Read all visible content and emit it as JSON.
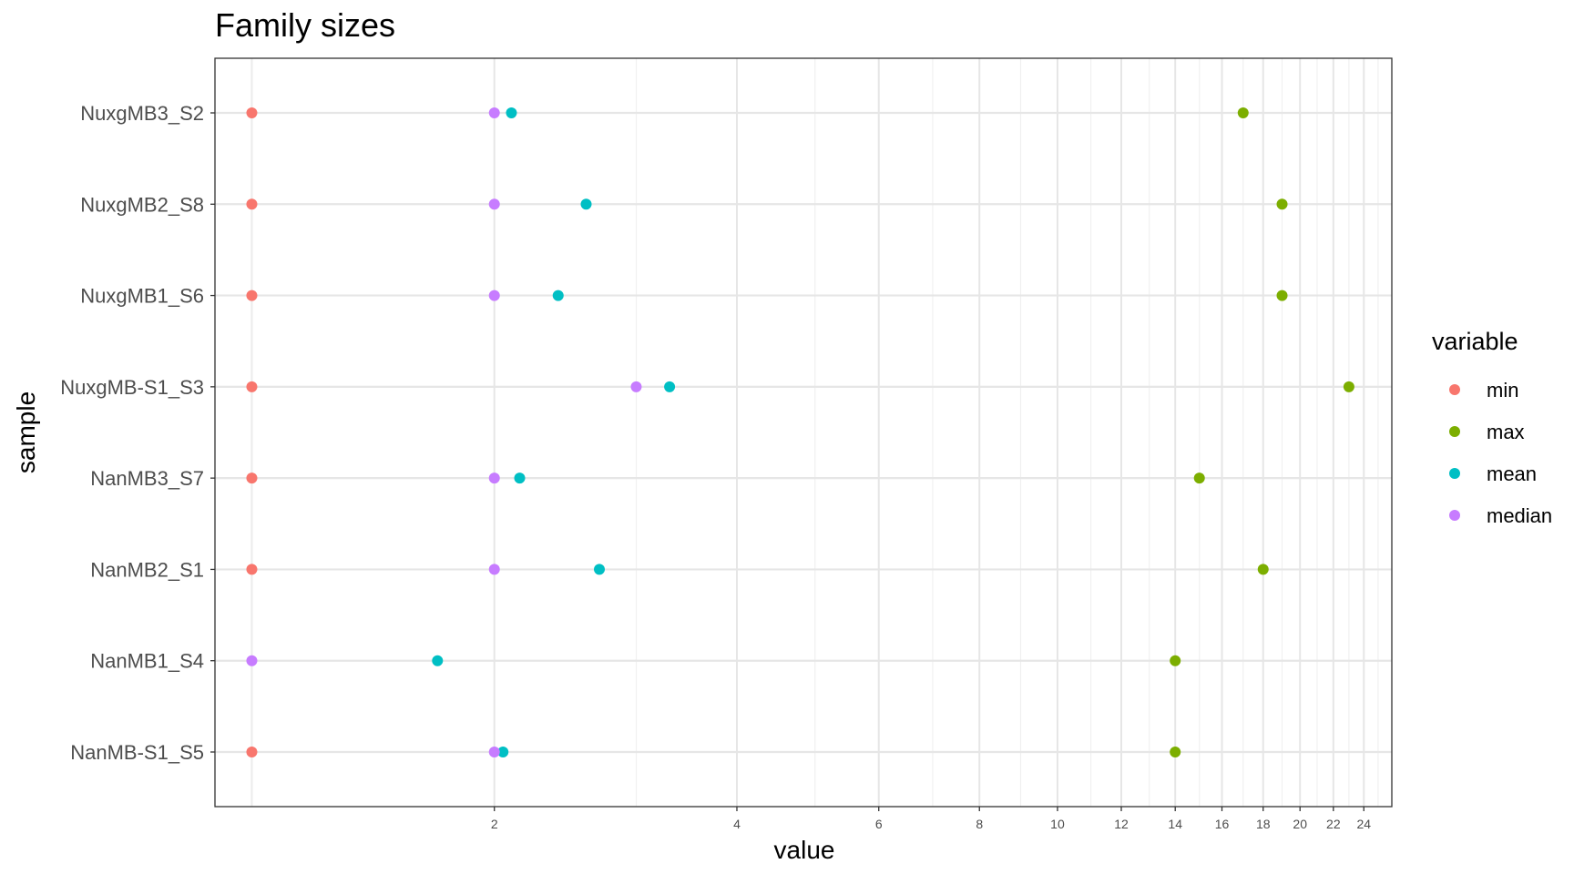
{
  "chart_data": {
    "type": "scatter",
    "title": "Family sizes",
    "xlabel": "value",
    "ylabel": "sample",
    "x_scale": "log",
    "x_ticks": [
      2,
      4,
      6,
      8,
      10,
      12,
      14,
      16,
      18,
      20,
      22,
      24
    ],
    "x_minor_ticks": [
      3,
      5,
      7,
      9,
      11,
      13,
      15,
      17,
      19,
      21,
      23,
      25
    ],
    "xlim": [
      0.9,
      26
    ],
    "categories": [
      "NuxgMB3_S2",
      "NuxgMB2_S8",
      "NuxgMB1_S6",
      "NuxgMB-S1_S3",
      "NanMB3_S7",
      "NanMB2_S1",
      "NanMB1_S4",
      "NanMB-S1_S5"
    ],
    "grid": true,
    "legend_title": "variable",
    "legend_position": "right",
    "series": [
      {
        "name": "min",
        "color": "#F8766D",
        "values": [
          1,
          1,
          1,
          1,
          1,
          1,
          null,
          1
        ]
      },
      {
        "name": "max",
        "color": "#7CAE00",
        "values": [
          17,
          19,
          19,
          23,
          15,
          18,
          14,
          14
        ]
      },
      {
        "name": "mean",
        "color": "#00BFC4",
        "values": [
          2.1,
          2.6,
          2.4,
          3.3,
          2.15,
          2.7,
          1.7,
          2.05
        ]
      },
      {
        "name": "median",
        "color": "#C77CFF",
        "values": [
          2,
          2,
          2,
          3,
          2,
          2,
          1,
          2
        ]
      }
    ]
  }
}
